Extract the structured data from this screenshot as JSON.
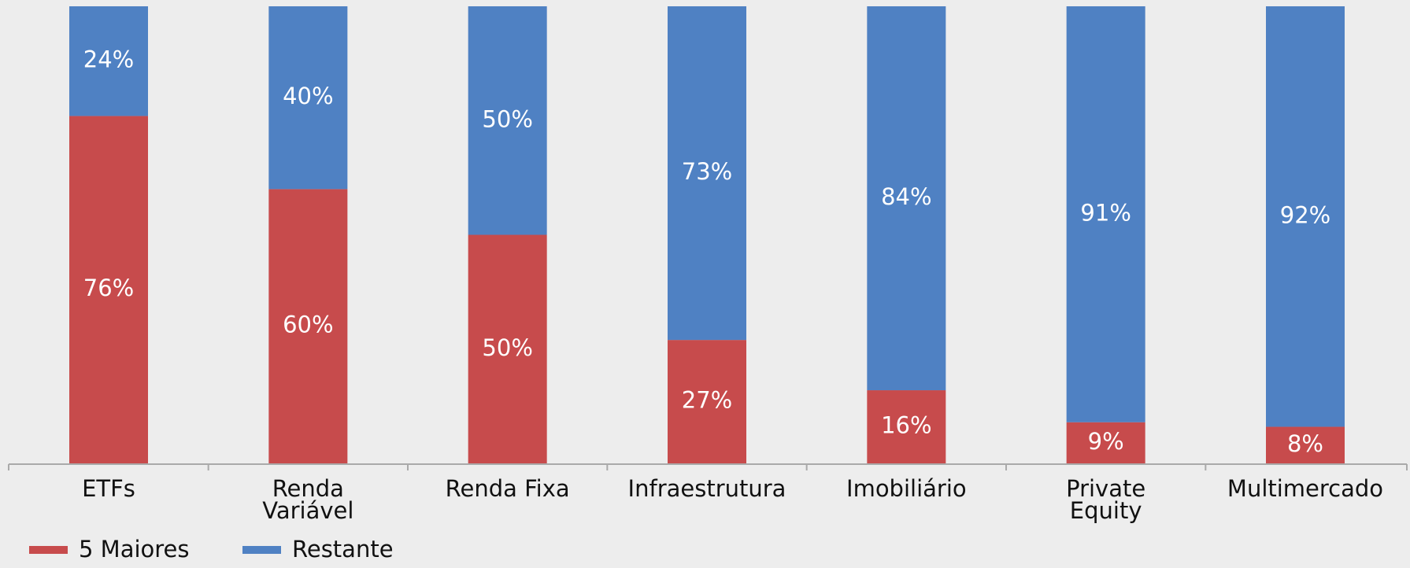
{
  "chart_data": {
    "type": "stacked_bar",
    "categories": [
      "ETFs",
      "Renda\nVariável",
      "Renda Fixa",
      "Infraestrutura",
      "Imobiliário",
      "Private\nEquity",
      "Multimercado"
    ],
    "series": [
      {
        "name": "5 Maiores",
        "color": "#c74b4c",
        "values": [
          76,
          60,
          50,
          27,
          16,
          9,
          8
        ],
        "value_labels": [
          "76%",
          "60%",
          "50%",
          "27%",
          "16%",
          "9%",
          "8%"
        ]
      },
      {
        "name": "Restante",
        "color": "#4f81c3",
        "values": [
          24,
          40,
          50,
          73,
          84,
          91,
          92
        ],
        "value_labels": [
          "24%",
          "40%",
          "50%",
          "73%",
          "84%",
          "91%",
          "92%"
        ]
      }
    ],
    "ylim": [
      0,
      100
    ],
    "legend": "bottom-left"
  }
}
